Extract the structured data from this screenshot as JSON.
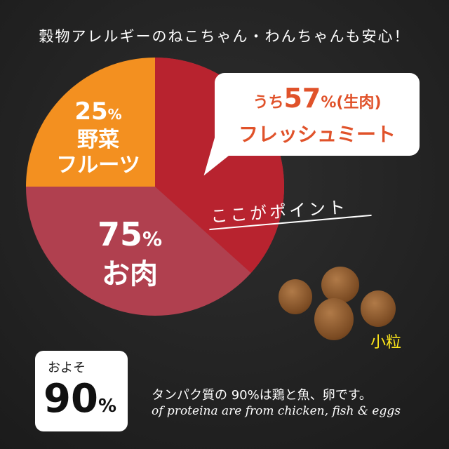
{
  "headline": "穀物アレルギーのねこちゃん・わんちゃんも安心！",
  "pie": {
    "colors": {
      "veg": "#f39020",
      "fresh": "#b8232f",
      "meat": "#b0404f"
    },
    "veg": {
      "percent": "25",
      "unit": "%",
      "label1": "野菜",
      "label2": "フルーツ"
    },
    "meat": {
      "percent": "75",
      "unit": "%",
      "label": "お肉"
    }
  },
  "callout": {
    "prefix": "うち",
    "percent": "57",
    "unit": "%",
    "suffix": "(生肉)",
    "line2": "フレッシュミート"
  },
  "point": "ここがポイント",
  "kibble_label": "小粒",
  "badge": {
    "top": "およそ",
    "value": "90",
    "unit": "%"
  },
  "description": {
    "ja": "タンパク質の 90%は鶏と魚、卵です。",
    "en": "of proteina are from chicken, fish & eggs"
  }
}
